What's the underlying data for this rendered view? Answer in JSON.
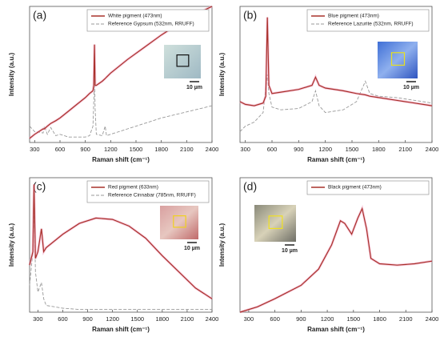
{
  "chart_data": [
    {
      "type": "line",
      "label": "(a)",
      "xlabel": "Raman shift (cm⁻¹)",
      "ylabel": "Intensity (a.u.)",
      "inset_scale": "10 µm",
      "xlim": [
        240,
        2400
      ],
      "xticks": [
        300,
        600,
        900,
        1200,
        1500,
        1800,
        2100,
        2400
      ],
      "ylim": [
        0,
        100
      ],
      "legend": "upper right",
      "x": [
        240,
        300,
        400,
        415,
        450,
        490,
        550,
        600,
        700,
        800,
        900,
        950,
        990,
        1000,
        1008,
        1016,
        1030,
        1100,
        1135,
        1150,
        1200,
        1400,
        1600,
        1800,
        2000,
        2200,
        2400
      ],
      "series": [
        {
          "name": "White pigment (473nm)",
          "color": "#a8322b",
          "dashed": false,
          "values": [
            3,
            6,
            10,
            10,
            12,
            14,
            16,
            18,
            23,
            28,
            33,
            36,
            38,
            42,
            72,
            42,
            42,
            45,
            47,
            48,
            51,
            61,
            70,
            79,
            87,
            94,
            100
          ]
        },
        {
          "name": "Reference Gypsum (532nm, RRUFF)",
          "color": "#999999",
          "dashed": true,
          "values": [
            12,
            8,
            7,
            12,
            6,
            11,
            5,
            6,
            4,
            4,
            4,
            5,
            12,
            30,
            53,
            25,
            6,
            5,
            12,
            5,
            6,
            10,
            14,
            18,
            21,
            24,
            27
          ]
        }
      ]
    },
    {
      "type": "line",
      "label": "(b)",
      "xlabel": "Raman shift (cm⁻¹)",
      "ylabel": "Intensity (a.u.)",
      "inset_scale": "10 µm",
      "xlim": [
        240,
        2400
      ],
      "xticks": [
        300,
        600,
        900,
        1200,
        1500,
        1800,
        2100,
        2400
      ],
      "ylim": [
        0,
        100
      ],
      "legend": "upper right",
      "x": [
        240,
        300,
        400,
        500,
        530,
        548,
        565,
        600,
        700,
        900,
        1050,
        1090,
        1130,
        1200,
        1400,
        1550,
        1650,
        1700,
        1800,
        2000,
        2200,
        2400
      ],
      "series": [
        {
          "name": "Blue pigment (473nm)",
          "color": "#a8322b",
          "dashed": false,
          "values": [
            30,
            28,
            27,
            29,
            34,
            92,
            42,
            36,
            37,
            39,
            42,
            48,
            42,
            40,
            38,
            36,
            35,
            34,
            33,
            31,
            29,
            27
          ]
        },
        {
          "name": "Reference Lazurite (532nm, RRUFF)",
          "color": "#999999",
          "dashed": true,
          "values": [
            8,
            12,
            15,
            22,
            40,
            50,
            36,
            26,
            24,
            25,
            30,
            38,
            27,
            22,
            24,
            30,
            45,
            36,
            34,
            33,
            31,
            29
          ]
        }
      ]
    },
    {
      "type": "line",
      "label": "(c)",
      "xlabel": "Raman shift (cm⁻¹)",
      "ylabel": "Intensity (a.u.)",
      "inset_scale": "10 µm",
      "xlim": [
        200,
        2400
      ],
      "xticks": [
        300,
        600,
        900,
        1200,
        1500,
        1800,
        2100,
        2400
      ],
      "ylim": [
        0,
        100
      ],
      "legend": "upper right",
      "x": [
        200,
        240,
        253,
        270,
        300,
        343,
        370,
        400,
        600,
        800,
        1000,
        1200,
        1400,
        1600,
        1800,
        2000,
        2200,
        2400
      ],
      "series": [
        {
          "name": "Red pigment (633nm)",
          "color": "#a8322b",
          "dashed": false,
          "values": [
            35,
            45,
            95,
            40,
            45,
            62,
            45,
            48,
            58,
            66,
            70,
            69,
            64,
            55,
            42,
            30,
            18,
            10
          ]
        },
        {
          "name": "Reference Cinnabar (785nm, RRUFF)",
          "color": "#999999",
          "dashed": true,
          "values": [
            20,
            45,
            85,
            30,
            15,
            22,
            10,
            5,
            3,
            2,
            2,
            2,
            2,
            2,
            2,
            2,
            2,
            2
          ]
        }
      ]
    },
    {
      "type": "line",
      "label": "(d)",
      "xlabel": "Raman shift (cm⁻¹)",
      "ylabel": "Intensity (a.u.)",
      "inset_scale": "10 µm",
      "xlim": [
        200,
        2400
      ],
      "xticks": [
        300,
        600,
        900,
        1200,
        1500,
        1800,
        2100,
        2400
      ],
      "ylim": [
        0,
        100
      ],
      "legend": "upper right",
      "x": [
        200,
        400,
        600,
        900,
        1100,
        1250,
        1350,
        1400,
        1480,
        1550,
        1600,
        1650,
        1700,
        1800,
        2000,
        2200,
        2400
      ],
      "series": [
        {
          "name": "Black pigment (473nm)",
          "color": "#a8322b",
          "dashed": false,
          "values": [
            0,
            4,
            10,
            20,
            32,
            50,
            68,
            66,
            58,
            70,
            77,
            62,
            40,
            36,
            35,
            36,
            38
          ]
        }
      ]
    }
  ]
}
